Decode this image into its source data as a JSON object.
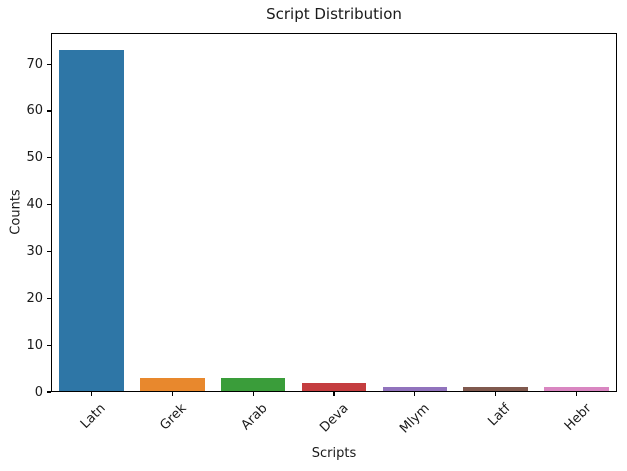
{
  "chart_data": {
    "type": "bar",
    "title": "Script Distribution",
    "xlabel": "Scripts",
    "ylabel": "Counts",
    "categories": [
      "Latn",
      "Grek",
      "Arab",
      "Deva",
      "Mlym",
      "Latf",
      "Hebr"
    ],
    "values": [
      73,
      3,
      3,
      2,
      1,
      1,
      1
    ],
    "colors": [
      "#2E76A6",
      "#E8882D",
      "#3A9D3A",
      "#C43D3F",
      "#9173BD",
      "#80594E",
      "#D986C1"
    ],
    "yticks": [
      0,
      10,
      20,
      30,
      40,
      50,
      60,
      70
    ],
    "ylim": [
      0,
      76.65
    ],
    "x_tick_rotation": 45,
    "grid": false,
    "legend": null,
    "bar_width_fraction": 0.8,
    "frame_color": "#000000"
  }
}
